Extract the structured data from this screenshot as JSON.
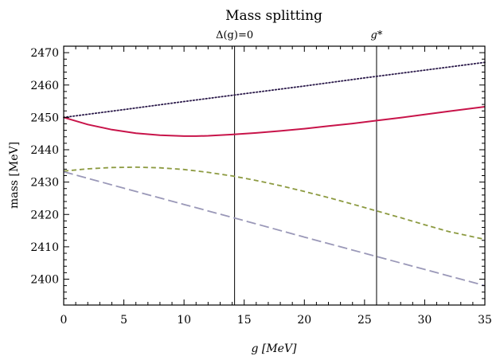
{
  "chart_data": {
    "type": "line",
    "title": "Mass splitting",
    "xlabel": "g [MeV]",
    "ylabel": "mass [MeV]",
    "xlim": [
      0,
      35
    ],
    "ylim": [
      2392,
      2472
    ],
    "x_ticks": [
      0,
      5,
      10,
      15,
      20,
      25,
      30,
      35
    ],
    "y_ticks": [
      2400,
      2410,
      2420,
      2430,
      2440,
      2450,
      2460,
      2470
    ],
    "grid": false,
    "vlines": [
      {
        "x": 14.2,
        "label": "Δ(g)=0"
      },
      {
        "x": 26.0,
        "label": "g*"
      }
    ],
    "series": [
      {
        "style": "dotted",
        "color": "#2b1a4a",
        "x": [
          0,
          5,
          10,
          15,
          20,
          25,
          30,
          35
        ],
        "y": [
          2450.0,
          2452.4,
          2454.9,
          2457.3,
          2459.7,
          2462.2,
          2464.6,
          2467.0
        ]
      },
      {
        "style": "solid",
        "color": "#c8144a",
        "x": [
          0,
          2,
          4,
          6,
          8,
          10,
          11,
          12,
          14,
          16,
          18,
          20,
          22,
          24,
          26,
          28,
          30,
          32,
          35
        ],
        "y": [
          2450.0,
          2447.8,
          2446.2,
          2445.1,
          2444.5,
          2444.2,
          2444.2,
          2444.3,
          2444.7,
          2445.2,
          2445.8,
          2446.5,
          2447.3,
          2448.1,
          2449.0,
          2449.9,
          2450.9,
          2451.9,
          2453.3
        ]
      },
      {
        "style": "dashed",
        "color": "#8c9a40",
        "x": [
          0,
          2,
          4,
          6,
          8,
          10,
          12,
          14,
          16,
          18,
          20,
          22,
          24,
          26,
          28,
          30,
          32,
          35
        ],
        "y": [
          2433.4,
          2434.1,
          2434.5,
          2434.6,
          2434.4,
          2433.9,
          2433.0,
          2431.9,
          2430.5,
          2428.9,
          2427.1,
          2425.2,
          2423.2,
          2421.1,
          2419.0,
          2416.8,
          2414.7,
          2412.3
        ]
      },
      {
        "style": "longdash",
        "color": "#9a98b8",
        "x": [
          0,
          5,
          10,
          15,
          20,
          25,
          30,
          35
        ],
        "y": [
          2433.2,
          2428.1,
          2423.1,
          2418.1,
          2413.0,
          2408.0,
          2403.0,
          2398.0
        ]
      }
    ]
  }
}
